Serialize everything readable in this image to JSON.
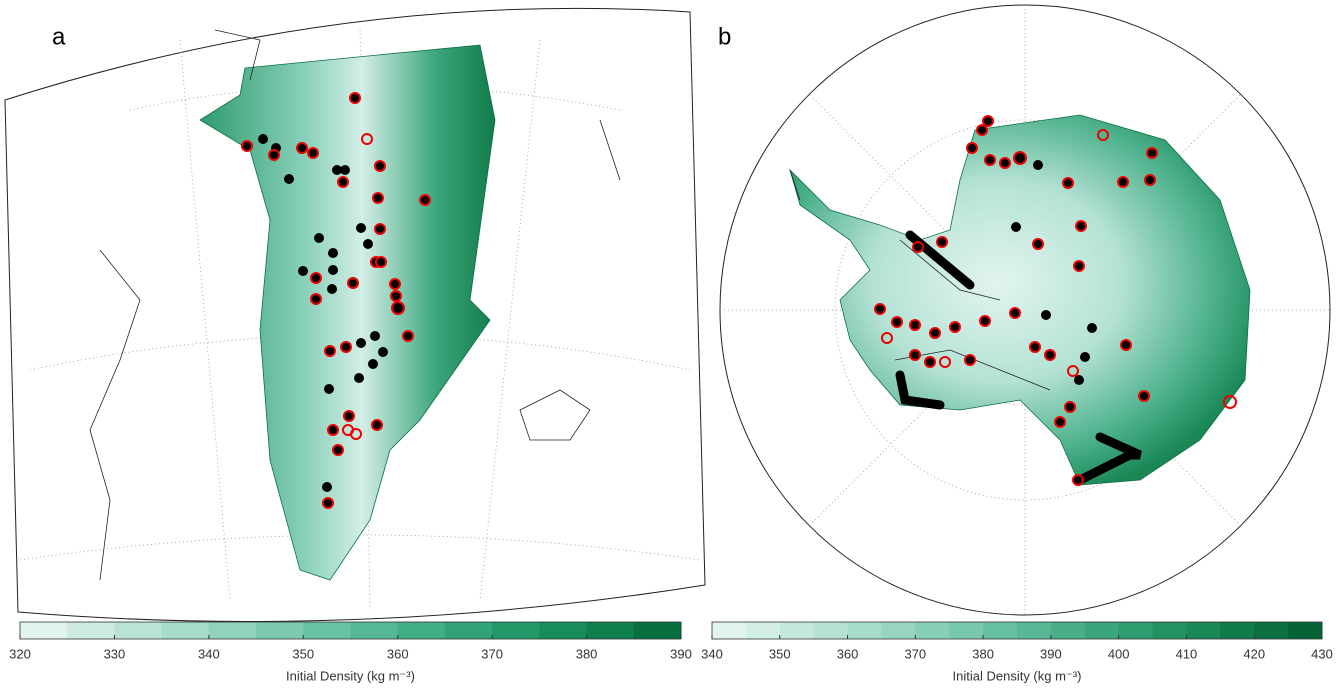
{
  "panels": [
    {
      "letter": "a",
      "colorbar": {
        "lim": [
          320,
          390
        ],
        "ticks": [
          320,
          330,
          340,
          350,
          360,
          370,
          380,
          390
        ],
        "label": "Initial Density (kg m⁻³)",
        "colors": [
          "#e0f3ef",
          "#cdebe3",
          "#b9e3d6",
          "#a5dbca",
          "#91d2bd",
          "#7dcab0",
          "#69c1a3",
          "#55b895",
          "#42ae86",
          "#31a377",
          "#239868",
          "#188c5a",
          "#0f7f4c",
          "#086f3f"
        ]
      }
    },
    {
      "letter": "b",
      "colorbar": {
        "lim": [
          340,
          430
        ],
        "ticks": [
          340,
          350,
          360,
          370,
          380,
          390,
          400,
          410,
          420,
          430
        ],
        "label": "Initial Density (kg m⁻³)",
        "colors": [
          "#e2f4f0",
          "#d3eee7",
          "#c4e8de",
          "#b5e2d5",
          "#a6dccc",
          "#97d5c2",
          "#88cfb8",
          "#78c8ad",
          "#68c0a2",
          "#58b896",
          "#49af89",
          "#3ba67c",
          "#2e9c6f",
          "#239262",
          "#1a8756",
          "#127b4a",
          "#0b6f3f",
          "#066335"
        ]
      }
    }
  ]
}
